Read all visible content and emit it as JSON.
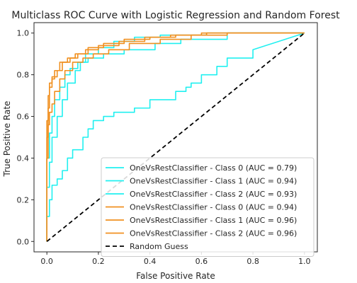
{
  "chart_data": {
    "type": "line",
    "title": "Multiclass ROC Curve with Logistic Regression and Random Forest",
    "xlabel": "False Positive Rate",
    "ylabel": "True Positive Rate",
    "xlim": [
      -0.05,
      1.05
    ],
    "ylim": [
      -0.05,
      1.05
    ],
    "xticks": [
      "0.0",
      "0.2",
      "0.4",
      "0.6",
      "0.8",
      "1.0"
    ],
    "yticks": [
      "0.0",
      "0.2",
      "0.4",
      "0.6",
      "0.8",
      "1.0"
    ],
    "grid": false,
    "legend_position": "lower-right",
    "series": [
      {
        "name": "OneVsRestClassifier - Class 0 (AUC = 0.79)",
        "color": "#20f0f0",
        "x": [
          0.0,
          0.0,
          0.01,
          0.01,
          0.02,
          0.02,
          0.04,
          0.04,
          0.06,
          0.06,
          0.08,
          0.08,
          0.1,
          0.1,
          0.14,
          0.14,
          0.16,
          0.16,
          0.18,
          0.18,
          0.22,
          0.22,
          0.26,
          0.26,
          0.34,
          0.34,
          0.4,
          0.4,
          0.5,
          0.5,
          0.54,
          0.54,
          0.56,
          0.56,
          0.6,
          0.6,
          0.66,
          0.66,
          0.7,
          0.7,
          0.8,
          0.8,
          1.0
        ],
        "y": [
          0.0,
          0.12,
          0.12,
          0.2,
          0.2,
          0.27,
          0.27,
          0.3,
          0.3,
          0.34,
          0.34,
          0.4,
          0.4,
          0.44,
          0.44,
          0.5,
          0.5,
          0.54,
          0.54,
          0.58,
          0.58,
          0.6,
          0.6,
          0.62,
          0.62,
          0.64,
          0.64,
          0.68,
          0.68,
          0.72,
          0.72,
          0.74,
          0.74,
          0.76,
          0.76,
          0.8,
          0.8,
          0.84,
          0.84,
          0.88,
          0.88,
          0.92,
          1.0
        ]
      },
      {
        "name": "OneVsRestClassifier - Class 1 (AUC = 0.94)",
        "color": "#20f0f0",
        "x": [
          0.0,
          0.0,
          0.01,
          0.01,
          0.02,
          0.02,
          0.03,
          0.03,
          0.05,
          0.05,
          0.07,
          0.07,
          0.09,
          0.09,
          0.12,
          0.12,
          0.16,
          0.16,
          0.22,
          0.22,
          0.3,
          0.3,
          0.42,
          0.42,
          0.52,
          0.52,
          0.7,
          0.7,
          1.0
        ],
        "y": [
          0.0,
          0.4,
          0.4,
          0.52,
          0.52,
          0.6,
          0.6,
          0.68,
          0.68,
          0.74,
          0.74,
          0.8,
          0.8,
          0.83,
          0.83,
          0.86,
          0.86,
          0.88,
          0.88,
          0.9,
          0.9,
          0.92,
          0.92,
          0.95,
          0.95,
          0.97,
          0.97,
          1.0,
          1.0
        ]
      },
      {
        "name": "OneVsRestClassifier - Class 2 (AUC = 0.93)",
        "color": "#20f0f0",
        "x": [
          0.0,
          0.0,
          0.01,
          0.01,
          0.02,
          0.02,
          0.04,
          0.04,
          0.06,
          0.06,
          0.08,
          0.08,
          0.11,
          0.11,
          0.13,
          0.13,
          0.15,
          0.15,
          0.2,
          0.2,
          0.26,
          0.26,
          0.34,
          0.34,
          0.44,
          0.44,
          0.62,
          0.62,
          1.0
        ],
        "y": [
          0.0,
          0.26,
          0.26,
          0.38,
          0.38,
          0.5,
          0.5,
          0.6,
          0.6,
          0.68,
          0.68,
          0.76,
          0.76,
          0.82,
          0.82,
          0.86,
          0.86,
          0.9,
          0.9,
          0.93,
          0.93,
          0.96,
          0.96,
          0.98,
          0.98,
          0.99,
          0.99,
          1.0,
          1.0
        ]
      },
      {
        "name": "OneVsRestClassifier - Class 0 (AUC = 0.94)",
        "color": "#f09020",
        "x": [
          0.0,
          0.0,
          0.005,
          0.005,
          0.01,
          0.01,
          0.02,
          0.02,
          0.03,
          0.03,
          0.05,
          0.05,
          0.07,
          0.07,
          0.1,
          0.1,
          0.14,
          0.14,
          0.18,
          0.18,
          0.24,
          0.24,
          0.32,
          0.32,
          0.44,
          0.44,
          0.56,
          0.56,
          0.7,
          0.7,
          1.0
        ],
        "y": [
          0.0,
          0.4,
          0.4,
          0.56,
          0.56,
          0.62,
          0.62,
          0.66,
          0.66,
          0.72,
          0.72,
          0.78,
          0.78,
          0.82,
          0.82,
          0.86,
          0.86,
          0.88,
          0.88,
          0.9,
          0.9,
          0.92,
          0.92,
          0.95,
          0.95,
          0.97,
          0.97,
          0.99,
          0.99,
          1.0,
          1.0
        ]
      },
      {
        "name": "OneVsRestClassifier - Class 1 (AUC = 0.96)",
        "color": "#f09020",
        "x": [
          0.0,
          0.0,
          0.005,
          0.005,
          0.01,
          0.01,
          0.02,
          0.02,
          0.04,
          0.04,
          0.06,
          0.06,
          0.09,
          0.09,
          0.12,
          0.12,
          0.16,
          0.16,
          0.22,
          0.22,
          0.3,
          0.3,
          0.4,
          0.4,
          0.5,
          0.5,
          0.62,
          0.62,
          1.0
        ],
        "y": [
          0.0,
          0.58,
          0.58,
          0.7,
          0.7,
          0.76,
          0.76,
          0.79,
          0.79,
          0.82,
          0.82,
          0.86,
          0.86,
          0.88,
          0.88,
          0.9,
          0.9,
          0.93,
          0.93,
          0.95,
          0.95,
          0.97,
          0.97,
          0.98,
          0.98,
          0.99,
          0.99,
          1.0,
          1.0
        ]
      },
      {
        "name": "OneVsRestClassifier - Class 2 (AUC = 0.96)",
        "color": "#f09020",
        "x": [
          0.0,
          0.0,
          0.005,
          0.005,
          0.01,
          0.01,
          0.02,
          0.02,
          0.03,
          0.03,
          0.05,
          0.05,
          0.08,
          0.08,
          0.11,
          0.11,
          0.15,
          0.15,
          0.2,
          0.2,
          0.28,
          0.28,
          0.38,
          0.38,
          0.48,
          0.48,
          0.6,
          0.6,
          1.0
        ],
        "y": [
          0.0,
          0.5,
          0.5,
          0.64,
          0.64,
          0.74,
          0.74,
          0.78,
          0.78,
          0.82,
          0.82,
          0.86,
          0.86,
          0.88,
          0.88,
          0.9,
          0.9,
          0.92,
          0.92,
          0.94,
          0.94,
          0.96,
          0.96,
          0.98,
          0.98,
          0.99,
          0.99,
          1.0,
          1.0
        ]
      },
      {
        "name": "Random Guess",
        "color": "#000000",
        "dashed": true,
        "x": [
          0.0,
          1.0
        ],
        "y": [
          0.0,
          1.0
        ]
      }
    ]
  }
}
